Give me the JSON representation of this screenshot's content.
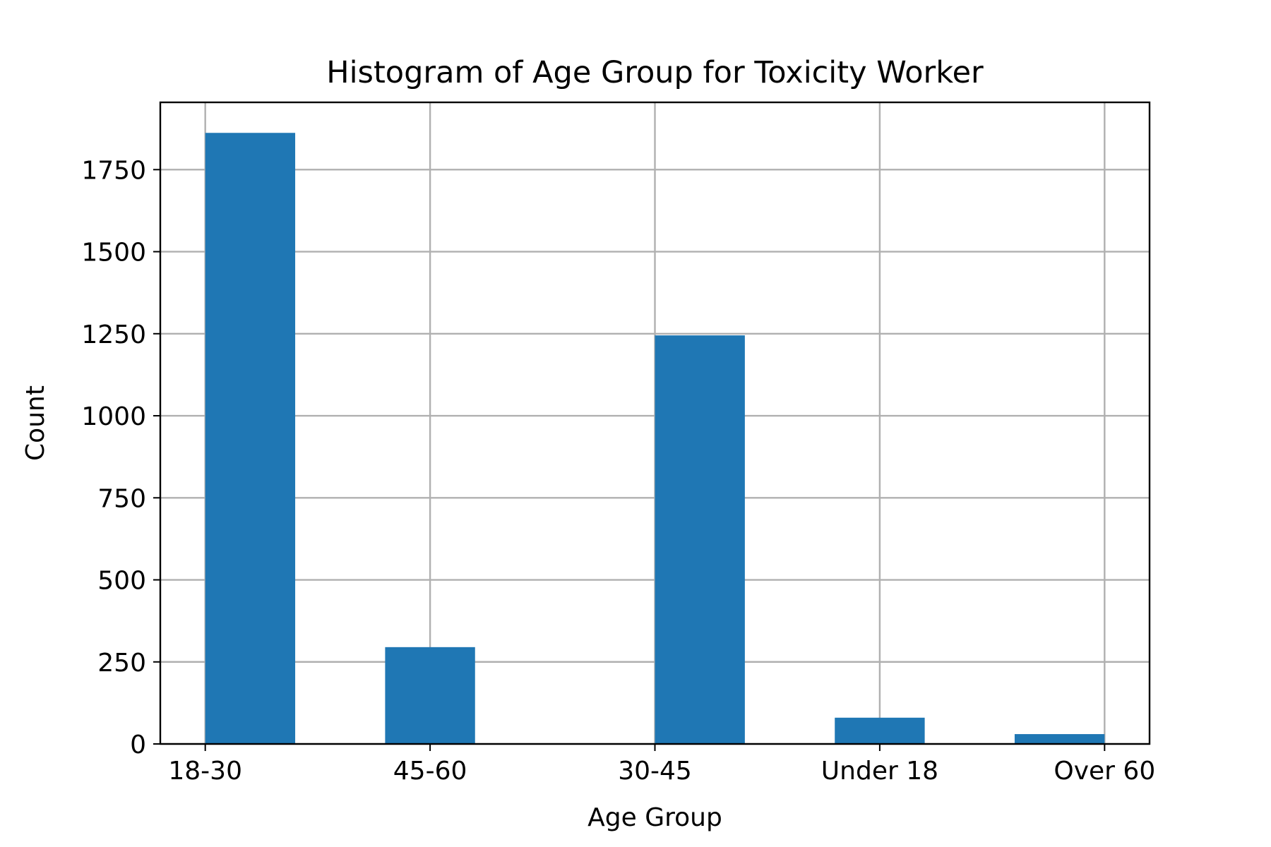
{
  "chart_data": {
    "type": "bar",
    "title": "Histogram of Age Group for Toxicity Worker",
    "xlabel": "Age Group",
    "ylabel": "Count",
    "x_ticks": [
      {
        "label": "18-30",
        "value": 0
      },
      {
        "label": "45-60",
        "value": 1
      },
      {
        "label": "30-45",
        "value": 2
      },
      {
        "label": "Under 18",
        "value": 3
      },
      {
        "label": "Over 60",
        "value": 4
      }
    ],
    "xlim": [
      -0.2,
      4.2
    ],
    "bins": [
      {
        "start": 0.0,
        "end": 0.4,
        "value": 1862
      },
      {
        "start": 0.8,
        "end": 1.2,
        "value": 295
      },
      {
        "start": 2.0,
        "end": 2.4,
        "value": 1245
      },
      {
        "start": 2.8,
        "end": 3.2,
        "value": 80
      },
      {
        "start": 3.6,
        "end": 4.0,
        "value": 30
      }
    ],
    "y_ticks": [
      0,
      250,
      500,
      750,
      1000,
      1250,
      1500,
      1750
    ],
    "ylim": [
      0,
      1955
    ],
    "grid": true,
    "bar_color": "#1f77b4"
  }
}
